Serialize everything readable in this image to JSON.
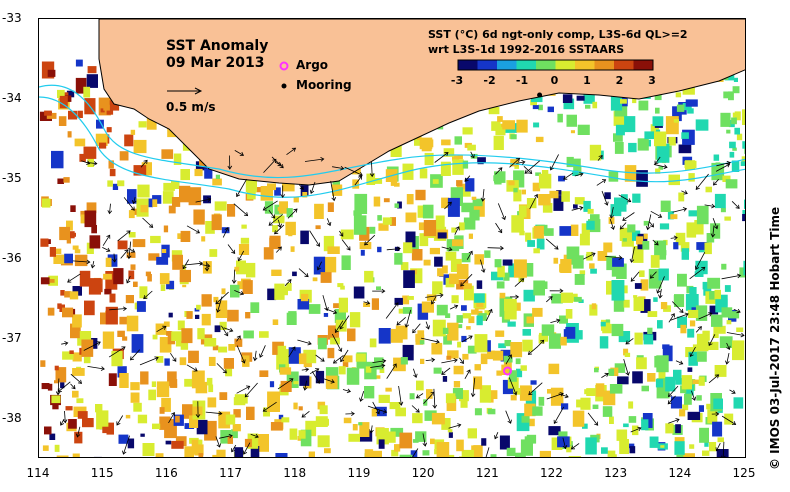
{
  "map": {
    "title": "SST Anomaly",
    "date": "09 Mar 2013",
    "vector_scale_label": "0.5 m/s",
    "legend": [
      {
        "name": "argo",
        "label": "Argo",
        "color": "#ff33ff"
      },
      {
        "name": "mooring",
        "label": "Mooring",
        "color": "#000000"
      }
    ],
    "product_line1": "SST (°C) 6d ngt-only comp, L3S-6d QL>=2",
    "product_line2": "wrt L3S-1d 1992-2016 SSTAARS",
    "colorbar": {
      "ticks": [
        "-3",
        "-2",
        "-1",
        "0",
        "1",
        "2",
        "3"
      ],
      "colors": [
        "#08086b",
        "#1535c8",
        "#1aa0e0",
        "#20d8b0",
        "#6fe060",
        "#d8ec30",
        "#f3c42a",
        "#e8921e",
        "#cc4410",
        "#8a1008"
      ]
    },
    "x_ticks": [
      "114",
      "115",
      "116",
      "117",
      "118",
      "119",
      "120",
      "121",
      "122",
      "123",
      "124",
      "125"
    ],
    "y_ticks": [
      "-33",
      "-34",
      "-35",
      "-36",
      "-37",
      "-38"
    ],
    "lon_range": [
      114,
      125
    ],
    "lat_range": [
      -33,
      -38.5
    ],
    "argo_position": {
      "lon": 121.3,
      "lat": -37.4
    },
    "mooring_position": {
      "lon": 121.8,
      "lat": -33.95
    },
    "land_color": "#f9c196",
    "credit": "© IMOS 03-Jul-2017 23:48 Hobart Time"
  }
}
